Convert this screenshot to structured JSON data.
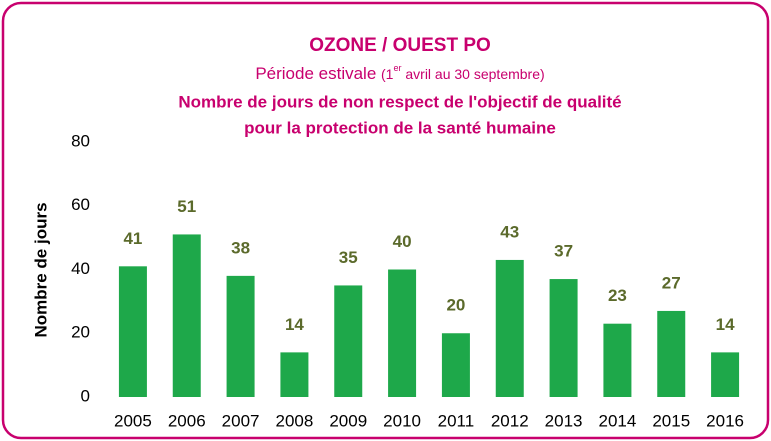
{
  "chart_data": {
    "type": "bar",
    "title": "OZONE / OUEST PO",
    "subtitle_parts": [
      "Période estivale ",
      "(1",
      "er",
      " avril au 30 septembre)"
    ],
    "heading_lines": [
      "Nombre de jours de non respect de l'objectif de qualité",
      "pour la protection de la santé humaine"
    ],
    "y_label": "Nombre de jours",
    "categories": [
      "2005",
      "2006",
      "2007",
      "2008",
      "2009",
      "2010",
      "2011",
      "2012",
      "2013",
      "2014",
      "2015",
      "2016"
    ],
    "values": [
      41,
      51,
      38,
      14,
      35,
      40,
      20,
      43,
      37,
      23,
      27,
      14
    ],
    "color": "#1ea84a",
    "ylim": [
      0,
      80
    ],
    "yticks": [
      0,
      20,
      40,
      60,
      80
    ],
    "grid": false
  }
}
